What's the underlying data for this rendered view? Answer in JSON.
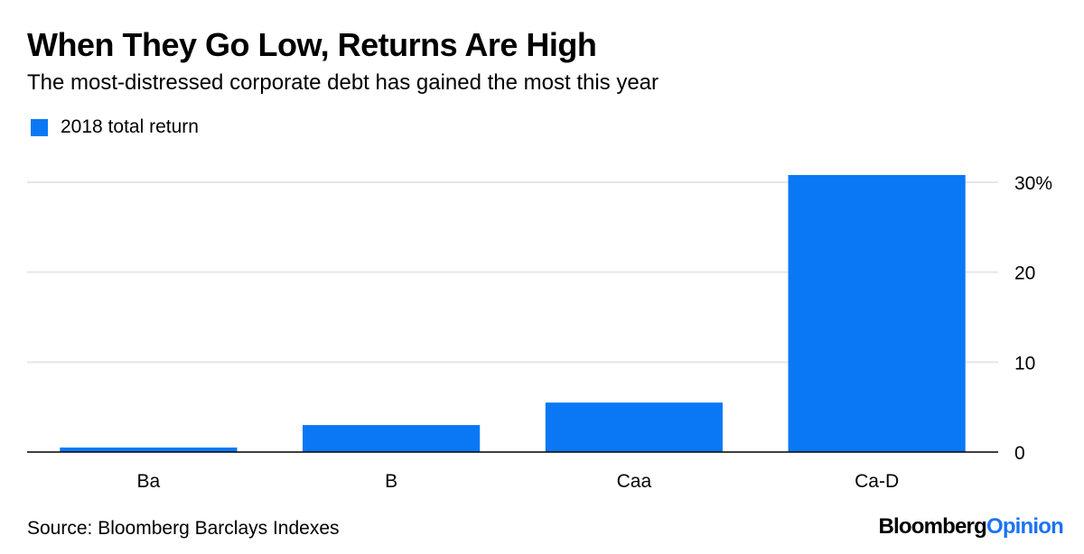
{
  "header": {
    "title": "When They Go Low, Returns Are High",
    "subtitle": "The most-distressed corporate debt has gained the most this year"
  },
  "legend": {
    "label": "2018 total return",
    "color": "#0a78f5"
  },
  "footer": {
    "source": "Source: Bloomberg Barclays Indexes",
    "brand_primary": "Bloomberg",
    "brand_secondary": "Opinion"
  },
  "chart_data": {
    "type": "bar",
    "categories": [
      "Ba",
      "B",
      "Caa",
      "Ca-D"
    ],
    "series": [
      {
        "name": "2018 total return",
        "values": [
          0.5,
          3.0,
          5.5,
          30.8
        ]
      }
    ],
    "ylim": [
      0,
      32
    ],
    "yticks": [
      0,
      10,
      20,
      30
    ],
    "ytick_labels": [
      "0",
      "10",
      "20",
      "30%"
    ],
    "yaxis_side": "right",
    "grid": true,
    "bar_color": "#0a78f5",
    "xlabel": "",
    "ylabel": ""
  }
}
